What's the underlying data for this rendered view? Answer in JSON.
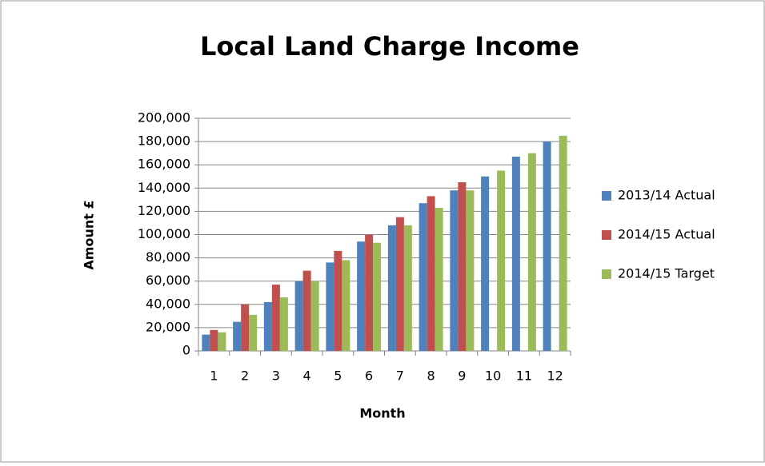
{
  "chart_data": {
    "type": "bar",
    "title": "Local Land Charge Income",
    "x_label": "Month",
    "y_label": "Amount £",
    "categories": [
      "1",
      "2",
      "3",
      "4",
      "5",
      "6",
      "7",
      "8",
      "9",
      "10",
      "11",
      "12"
    ],
    "series": [
      {
        "name": "2013/14 Actual",
        "color": "#4f81bd",
        "values": [
          14000,
          25000,
          42000,
          60000,
          76000,
          94000,
          108000,
          127000,
          138000,
          150000,
          167000,
          180000
        ]
      },
      {
        "name": "2014/15 Actual",
        "color": "#c0504d",
        "values": [
          18000,
          40000,
          57000,
          69000,
          86000,
          100000,
          115000,
          133000,
          145000,
          null,
          null,
          null
        ]
      },
      {
        "name": "2014/15 Target",
        "color": "#9bbb59",
        "values": [
          16000,
          31000,
          46000,
          60000,
          78000,
          93000,
          108000,
          123000,
          138000,
          155000,
          170000,
          185000
        ]
      }
    ],
    "ylim": [
      0,
      200000
    ],
    "yticks": [
      0,
      {
        "value": 20000,
        "label": "20,000"
      },
      {
        "value": 40000,
        "label": "40,000"
      },
      {
        "value": 60000,
        "label": "60,000"
      },
      {
        "value": 80000,
        "label": "80,000"
      },
      {
        "value": 100000,
        "label": "100,000"
      },
      {
        "value": 120000,
        "label": "120,000"
      },
      {
        "value": 140000,
        "label": "140,000"
      },
      {
        "value": 160000,
        "label": "160,000"
      },
      {
        "value": 180000,
        "label": "180,000"
      },
      {
        "value": 200000,
        "label": "200,000"
      }
    ],
    "grid": true,
    "legend": "right"
  }
}
